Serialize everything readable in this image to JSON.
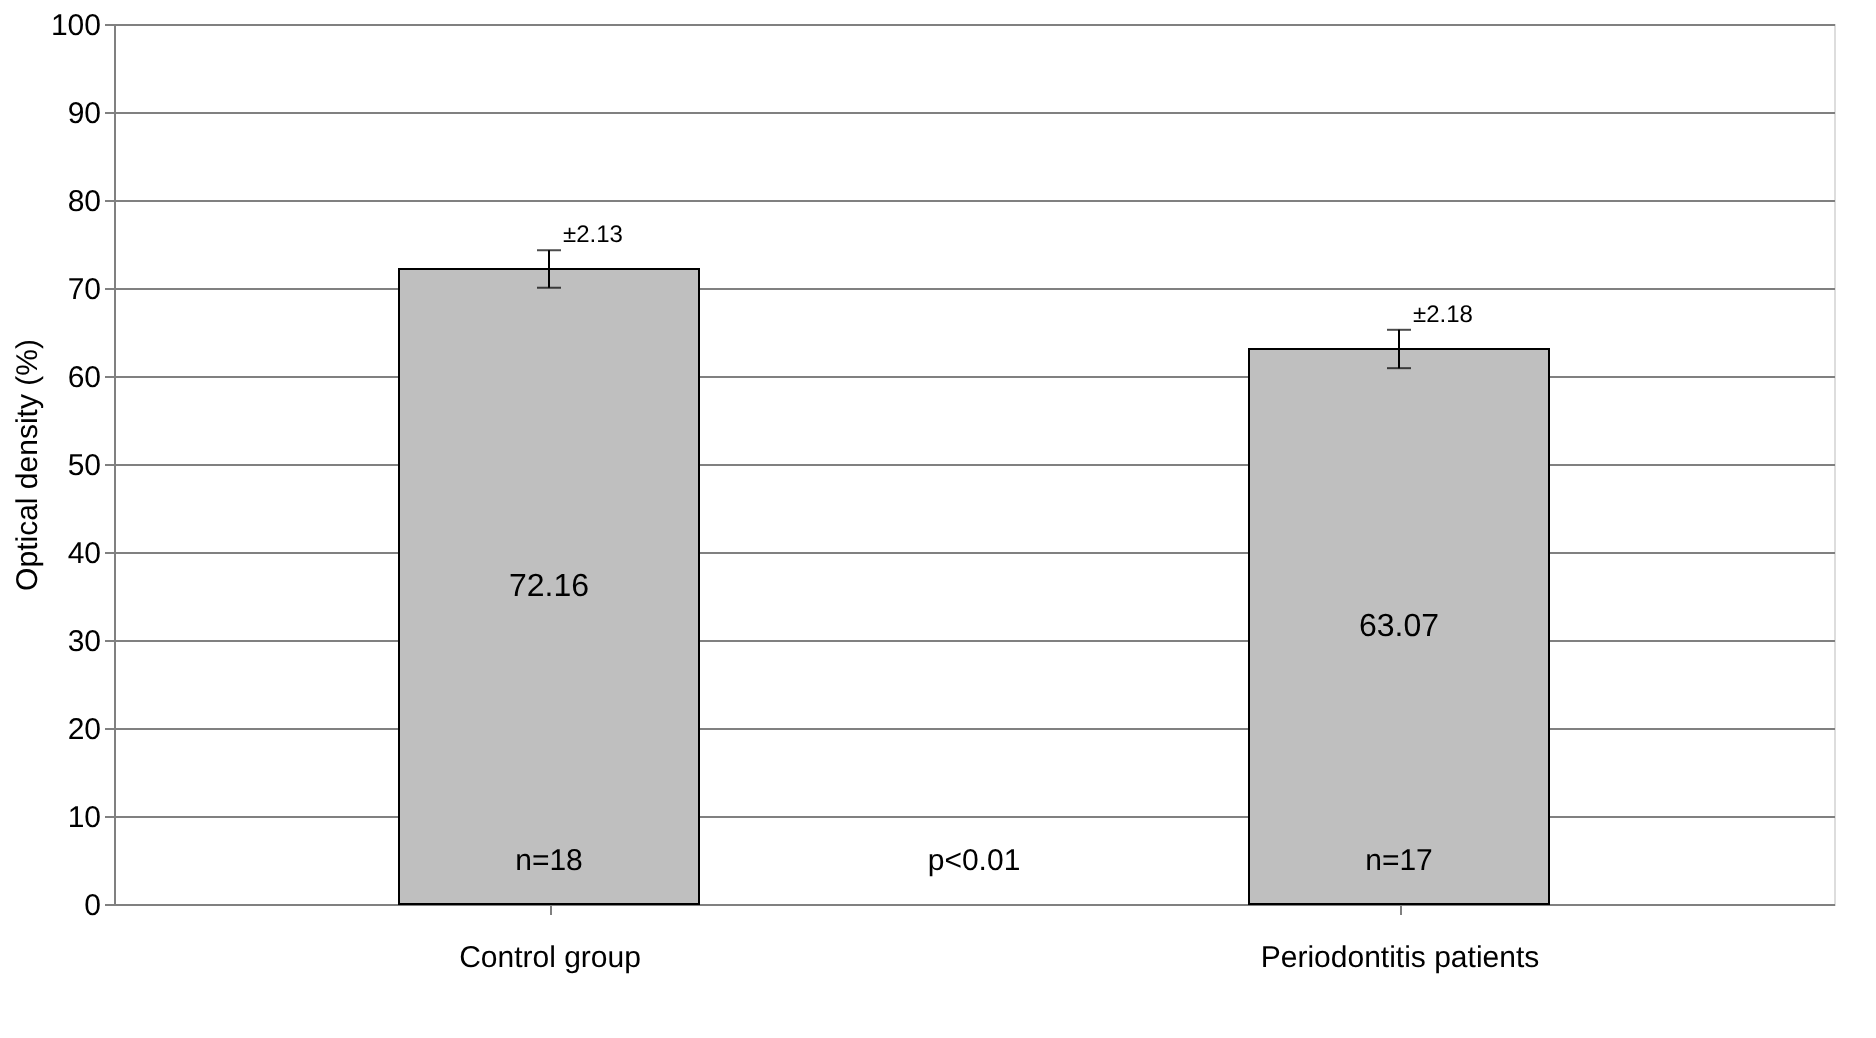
{
  "chart_data": {
    "type": "bar",
    "categories": [
      "Control group",
      "Periodontitis patients"
    ],
    "values": [
      72.16,
      63.07
    ],
    "errors": [
      2.13,
      2.18
    ],
    "color": "#bfbfbf",
    "data_labels": true,
    "ylabel": "Optical density (%)",
    "ylim": [
      0,
      100
    ],
    "yticks": [
      0,
      10,
      20,
      30,
      40,
      50,
      60,
      70,
      80,
      90,
      100
    ],
    "grid": "y",
    "annotations": [
      {
        "text": "±2.13",
        "x": "Control group",
        "y": 74.29
      },
      {
        "text": "±2.18",
        "x": "Periodontitis patients",
        "y": 65.25
      },
      "n=18",
      "p<0.01",
      "n=17"
    ]
  }
}
